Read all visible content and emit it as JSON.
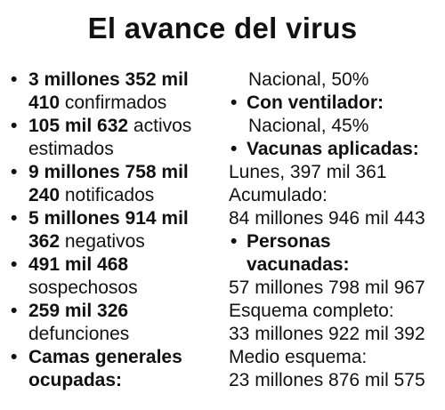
{
  "title": "El avance del virus",
  "left_items": [
    {
      "line1_bold": "3 millones 352 mil",
      "line2_bold": "410",
      "line2_normal": " confirmados"
    },
    {
      "line1_bold": "105 mil 632",
      "line1_normal": " activos",
      "line2_normal": "estimados"
    },
    {
      "line1_bold": "9 millones 758 mil",
      "line2_bold": "240",
      "line2_normal": " notificados"
    },
    {
      "line1_bold": "5 millones 914 mil",
      "line2_bold": "362",
      "line2_normal": " negativos"
    },
    {
      "line1_bold": "491 mil 468",
      "line2_normal": "sospechosos"
    },
    {
      "line1_bold": "259 mil 326",
      "line2_normal": "defunciones"
    },
    {
      "line1_bold": "Camas generales",
      "line2_bold": "ocupadas:"
    }
  ],
  "right": {
    "camas_value": "Nacional, 50%",
    "ventilador_label": "Con ventilador:",
    "ventilador_value": "Nacional, 45%",
    "vacunas_label": "Vacunas aplicadas:",
    "vacunas_lunes": "Lunes, 397 mil 361",
    "vacunas_acumulado_label": "Acumulado:",
    "vacunas_acumulado_value": "84 millones 946 mil 443",
    "personas_label_1": "Personas",
    "personas_label_2": "vacunadas:",
    "personas_value": "57 millones 798 mil 967",
    "esquema_completo_label": "Esquema completo:",
    "esquema_completo_value": "33 millones 922 mil 392",
    "medio_esquema_label": "Medio esquema:",
    "medio_esquema_value": "23 millones 876 mil 575"
  },
  "bullet_glyph": "•"
}
